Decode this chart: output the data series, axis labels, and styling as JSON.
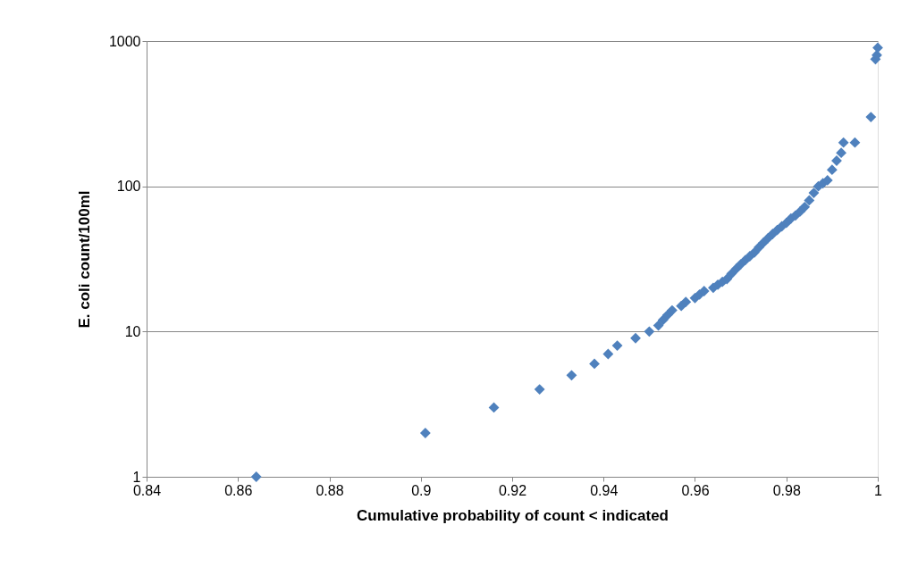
{
  "chart_data": {
    "type": "scatter",
    "xlabel": "Cumulative probability of count < indicated",
    "ylabel": "E. coli count/100ml",
    "x": [
      0.864,
      0.901,
      0.916,
      0.926,
      0.933,
      0.938,
      0.941,
      0.943,
      0.947,
      0.95,
      0.952,
      0.953,
      0.954,
      0.955,
      0.957,
      0.958,
      0.96,
      0.961,
      0.962,
      0.964,
      0.965,
      0.966,
      0.967,
      0.968,
      0.969,
      0.97,
      0.971,
      0.972,
      0.973,
      0.974,
      0.975,
      0.976,
      0.977,
      0.978,
      0.979,
      0.98,
      0.981,
      0.982,
      0.983,
      0.984,
      0.985,
      0.986,
      0.987,
      0.988,
      0.989,
      0.99,
      0.991,
      0.992,
      0.9925,
      0.995,
      0.9985,
      0.9995,
      0.9998,
      1.0
    ],
    "series": [
      {
        "color": "#4f81bd",
        "values": [
          1,
          2,
          3,
          4,
          5,
          6,
          7,
          8,
          9,
          10,
          11,
          12,
          13,
          14,
          15,
          16,
          17,
          18,
          19,
          20,
          21,
          22,
          23,
          25,
          27,
          29,
          31,
          33,
          35,
          38,
          41,
          44,
          47,
          50,
          53,
          56,
          60,
          63,
          67,
          72,
          80,
          90,
          100,
          105,
          110,
          130,
          150,
          170,
          200,
          200,
          300,
          750,
          800,
          900
        ]
      }
    ],
    "xlim": [
      0.84,
      1.0
    ],
    "xticks": [
      0.84,
      0.86,
      0.88,
      0.9,
      0.92,
      0.94,
      0.96,
      0.98,
      1
    ],
    "ylim": [
      1,
      1000
    ],
    "yticks": [
      1,
      10,
      100,
      1000
    ],
    "log": "y",
    "grid": "y",
    "marker": "diamond"
  }
}
